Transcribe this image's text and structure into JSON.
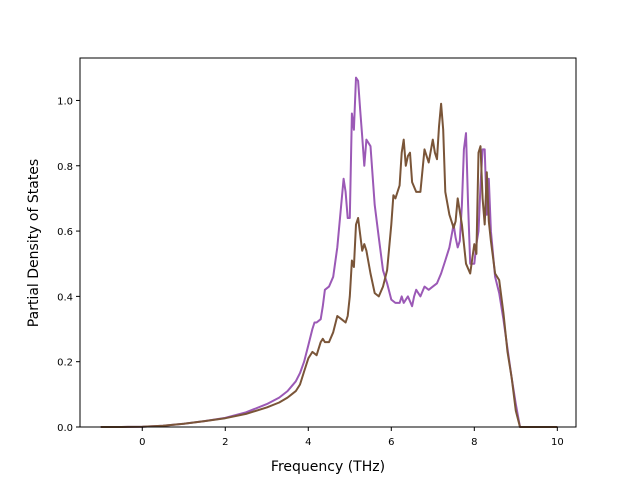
{
  "chart_data": {
    "type": "line",
    "title": "",
    "xlabel": "Frequency (THz)",
    "ylabel": "Partial Density of States",
    "xlim": [
      -1.5,
      10.45
    ],
    "ylim": [
      0.0,
      1.13
    ],
    "grid": false,
    "legend": "none",
    "x_ticks": [
      0,
      2,
      4,
      6,
      8,
      10
    ],
    "x_tick_labels": [
      "0",
      "2",
      "4",
      "6",
      "8",
      "10"
    ],
    "y_ticks": [
      0.0,
      0.2,
      0.4,
      0.6,
      0.8,
      1.0
    ],
    "y_tick_labels": [
      "0.0",
      "0.2",
      "0.4",
      "0.6",
      "0.8",
      "1.0"
    ],
    "series": [
      {
        "color": "#9b59b6",
        "x": [
          -1.0,
          -0.5,
          0.0,
          0.5,
          1.0,
          1.5,
          2.0,
          2.5,
          3.0,
          3.3,
          3.5,
          3.6,
          3.7,
          3.8,
          3.9,
          4.0,
          4.1,
          4.15,
          4.2,
          4.3,
          4.35,
          4.4,
          4.5,
          4.6,
          4.7,
          4.8,
          4.85,
          4.9,
          4.95,
          5.0,
          5.05,
          5.1,
          5.15,
          5.2,
          5.25,
          5.3,
          5.35,
          5.4,
          5.5,
          5.6,
          5.7,
          5.8,
          5.9,
          6.0,
          6.1,
          6.2,
          6.25,
          6.3,
          6.4,
          6.5,
          6.55,
          6.6,
          6.7,
          6.8,
          6.9,
          7.0,
          7.1,
          7.2,
          7.3,
          7.4,
          7.5,
          7.55,
          7.6,
          7.65,
          7.7,
          7.75,
          7.8,
          7.85,
          7.9,
          8.0,
          8.05,
          8.1,
          8.15,
          8.2,
          8.25,
          8.3,
          8.35,
          8.4,
          8.5,
          8.6,
          8.7,
          8.8,
          8.9,
          9.0,
          9.1,
          9.5,
          10.0
        ],
        "y": [
          0.0,
          0.0,
          0.001,
          0.004,
          0.01,
          0.018,
          0.028,
          0.045,
          0.07,
          0.09,
          0.11,
          0.125,
          0.14,
          0.165,
          0.2,
          0.25,
          0.3,
          0.32,
          0.32,
          0.33,
          0.37,
          0.42,
          0.43,
          0.46,
          0.55,
          0.69,
          0.76,
          0.72,
          0.64,
          0.64,
          0.96,
          0.91,
          1.07,
          1.06,
          0.97,
          0.89,
          0.8,
          0.88,
          0.86,
          0.68,
          0.58,
          0.48,
          0.44,
          0.39,
          0.38,
          0.38,
          0.4,
          0.38,
          0.4,
          0.37,
          0.4,
          0.42,
          0.4,
          0.43,
          0.42,
          0.43,
          0.44,
          0.47,
          0.51,
          0.55,
          0.62,
          0.58,
          0.55,
          0.57,
          0.68,
          0.85,
          0.9,
          0.68,
          0.5,
          0.5,
          0.56,
          0.6,
          0.74,
          0.85,
          0.85,
          0.65,
          0.76,
          0.6,
          0.46,
          0.41,
          0.33,
          0.24,
          0.15,
          0.07,
          0.0,
          0.0,
          0.0
        ]
      },
      {
        "color": "#7a5538",
        "x": [
          -1.0,
          -0.5,
          0.0,
          0.5,
          1.0,
          1.5,
          2.0,
          2.5,
          3.0,
          3.3,
          3.5,
          3.6,
          3.7,
          3.8,
          3.9,
          4.0,
          4.1,
          4.2,
          4.3,
          4.35,
          4.4,
          4.5,
          4.6,
          4.7,
          4.8,
          4.9,
          4.95,
          5.0,
          5.05,
          5.1,
          5.15,
          5.2,
          5.3,
          5.35,
          5.4,
          5.5,
          5.6,
          5.7,
          5.8,
          5.9,
          6.0,
          6.05,
          6.1,
          6.2,
          6.25,
          6.3,
          6.35,
          6.4,
          6.45,
          6.5,
          6.6,
          6.7,
          6.8,
          6.9,
          7.0,
          7.05,
          7.1,
          7.15,
          7.2,
          7.25,
          7.3,
          7.4,
          7.5,
          7.55,
          7.6,
          7.7,
          7.8,
          7.9,
          8.0,
          8.05,
          8.1,
          8.15,
          8.2,
          8.25,
          8.3,
          8.35,
          8.4,
          8.5,
          8.6,
          8.7,
          8.8,
          8.9,
          9.0,
          9.1,
          9.5,
          10.0
        ],
        "y": [
          0.0,
          0.0,
          0.001,
          0.004,
          0.01,
          0.018,
          0.027,
          0.04,
          0.06,
          0.075,
          0.09,
          0.1,
          0.11,
          0.13,
          0.17,
          0.21,
          0.23,
          0.22,
          0.26,
          0.27,
          0.26,
          0.26,
          0.29,
          0.34,
          0.33,
          0.32,
          0.34,
          0.4,
          0.51,
          0.49,
          0.62,
          0.64,
          0.54,
          0.56,
          0.54,
          0.47,
          0.41,
          0.4,
          0.43,
          0.48,
          0.62,
          0.71,
          0.7,
          0.74,
          0.84,
          0.88,
          0.8,
          0.83,
          0.84,
          0.75,
          0.72,
          0.72,
          0.85,
          0.81,
          0.88,
          0.84,
          0.82,
          0.92,
          0.99,
          0.91,
          0.72,
          0.65,
          0.61,
          0.63,
          0.7,
          0.62,
          0.5,
          0.47,
          0.56,
          0.53,
          0.84,
          0.86,
          0.7,
          0.62,
          0.78,
          0.63,
          0.57,
          0.47,
          0.45,
          0.35,
          0.23,
          0.15,
          0.05,
          0.0,
          0.0,
          0.0
        ]
      }
    ]
  }
}
